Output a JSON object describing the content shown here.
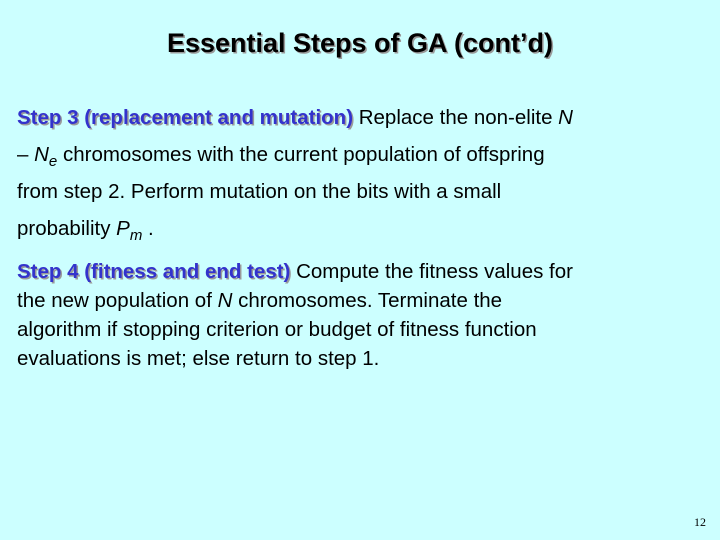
{
  "slide": {
    "title": "Essential Steps of GA (cont’d)",
    "page_number": "12",
    "background_color": "#ccffff",
    "label_color": "#3333cc"
  },
  "steps": [
    {
      "label": "Step 3 (replacement and mutation)",
      "line1_text": " Replace the non-elite ",
      "line1_var": "N",
      "line2_dash": "– ",
      "line2_var": "N",
      "line2_sub": "e",
      "line2_text": " chromosomes with the current population of offspring",
      "line3_text": "from step 2.  Perform mutation on the bits with a small",
      "line4_text": "probability ",
      "line4_var": "P",
      "line4_sub": "m",
      "line4_end": " ."
    },
    {
      "label": "Step 4 (fitness and end test)",
      "line1_text": " Compute the fitness values for",
      "line2_text_before": "the new population of ",
      "line2_var": "N",
      "line2_text_after": " chromosomes.  Terminate the",
      "line3_text": "algorithm if stopping criterion or budget of fitness function",
      "line4_text": "evaluations is met; else return to step 1."
    }
  ]
}
